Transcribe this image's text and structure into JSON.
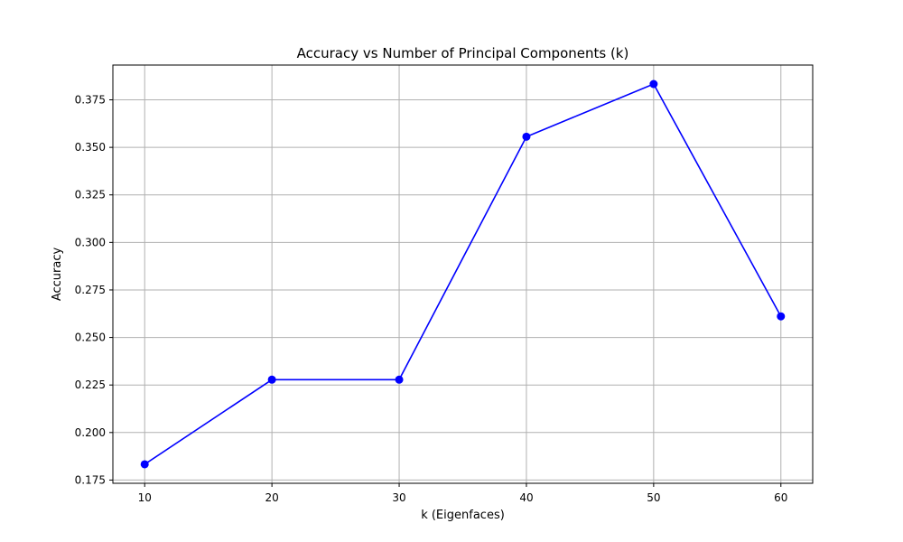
{
  "chart_data": {
    "type": "line",
    "title": "Accuracy vs Number of Principal Components (k)",
    "xlabel": "k (Eigenfaces)",
    "ylabel": "Accuracy",
    "x": [
      10,
      20,
      30,
      40,
      50,
      60
    ],
    "series": [
      {
        "values": [
          0.1833,
          0.2278,
          0.2278,
          0.3556,
          0.3833,
          0.2611
        ]
      }
    ],
    "xlim": [
      7.5,
      62.5
    ],
    "ylim": [
      0.1733,
      0.3933
    ],
    "xticks": [
      10,
      20,
      30,
      40,
      50,
      60
    ],
    "yticks": [
      0.175,
      0.2,
      0.225,
      0.25,
      0.275,
      0.3,
      0.325,
      0.35,
      0.375
    ],
    "xtick_labels": [
      "10",
      "20",
      "30",
      "40",
      "50",
      "60"
    ],
    "ytick_labels": [
      "0.175",
      "0.200",
      "0.225",
      "0.250",
      "0.275",
      "0.300",
      "0.325",
      "0.350",
      "0.375"
    ],
    "grid": true,
    "line_color": "#0000ff",
    "marker": "circle",
    "grid_color": "#b0b0b0"
  }
}
